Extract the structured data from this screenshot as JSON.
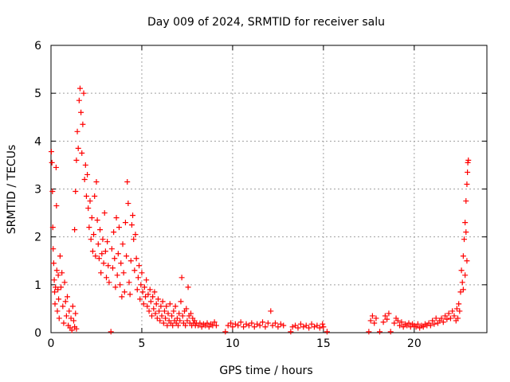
{
  "chart_data": {
    "type": "scatter",
    "title": "Day 009 of 2024, SRMTID for receiver salu",
    "xlabel": "GPS time / hours",
    "ylabel": "SRMTID / TECUs",
    "xlim": [
      0,
      24
    ],
    "ylim": [
      0,
      6
    ],
    "xticks": [
      0,
      5,
      10,
      15,
      20
    ],
    "yticks": [
      0,
      1,
      2,
      3,
      4,
      5,
      6
    ],
    "grid": true,
    "marker": "+",
    "color": "#ff0000",
    "series": [
      {
        "name": "SRMTID",
        "points": [
          [
            0.02,
            3.78
          ],
          [
            0.05,
            3.55
          ],
          [
            0.08,
            2.95
          ],
          [
            0.1,
            2.2
          ],
          [
            0.12,
            1.75
          ],
          [
            0.15,
            1.45
          ],
          [
            0.18,
            1.1
          ],
          [
            0.2,
            0.85
          ],
          [
            0.22,
            0.6
          ],
          [
            0.25,
            0.95
          ],
          [
            0.28,
            3.45
          ],
          [
            0.3,
            2.65
          ],
          [
            0.32,
            1.3
          ],
          [
            0.35,
            0.45
          ],
          [
            0.38,
            0.9
          ],
          [
            0.4,
            1.2
          ],
          [
            0.42,
            0.7
          ],
          [
            0.45,
            0.3
          ],
          [
            0.5,
            1.6
          ],
          [
            0.55,
            0.95
          ],
          [
            0.6,
            1.25
          ],
          [
            0.65,
            0.55
          ],
          [
            0.7,
            0.2
          ],
          [
            0.75,
            1.05
          ],
          [
            0.8,
            0.65
          ],
          [
            0.85,
            0.35
          ],
          [
            0.9,
            0.75
          ],
          [
            0.95,
            0.15
          ],
          [
            1.0,
            0.45
          ],
          [
            1.05,
            0.1
          ],
          [
            1.1,
            0.3
          ],
          [
            1.15,
            0.05
          ],
          [
            1.2,
            0.55
          ],
          [
            1.25,
            0.25
          ],
          [
            1.3,
            0.12
          ],
          [
            1.35,
            0.4
          ],
          [
            1.4,
            0.08
          ],
          [
            1.3,
            2.15
          ],
          [
            1.35,
            2.95
          ],
          [
            1.4,
            3.6
          ],
          [
            1.45,
            4.2
          ],
          [
            1.5,
            3.85
          ],
          [
            1.55,
            4.85
          ],
          [
            1.6,
            5.1
          ],
          [
            1.65,
            4.6
          ],
          [
            1.7,
            3.75
          ],
          [
            1.75,
            4.35
          ],
          [
            1.8,
            5.0
          ],
          [
            1.85,
            3.2
          ],
          [
            1.9,
            3.5
          ],
          [
            1.95,
            2.85
          ],
          [
            2.0,
            3.3
          ],
          [
            2.05,
            2.6
          ],
          [
            2.1,
            2.2
          ],
          [
            2.15,
            2.75
          ],
          [
            2.2,
            1.95
          ],
          [
            2.25,
            2.4
          ],
          [
            2.3,
            1.7
          ],
          [
            2.35,
            2.05
          ],
          [
            2.4,
            2.85
          ],
          [
            2.45,
            1.6
          ],
          [
            2.5,
            3.15
          ],
          [
            2.55,
            2.35
          ],
          [
            2.6,
            1.85
          ],
          [
            2.65,
            1.55
          ],
          [
            2.7,
            2.15
          ],
          [
            2.75,
            1.25
          ],
          [
            2.8,
            1.65
          ],
          [
            2.85,
            1.95
          ],
          [
            2.9,
            1.45
          ],
          [
            2.95,
            2.5
          ],
          [
            3.0,
            1.7
          ],
          [
            3.05,
            1.15
          ],
          [
            3.1,
            1.9
          ],
          [
            3.15,
            1.4
          ],
          [
            3.2,
            1.05
          ],
          [
            3.3,
            0.02
          ],
          [
            3.35,
            1.75
          ],
          [
            3.4,
            1.35
          ],
          [
            3.45,
            2.1
          ],
          [
            3.5,
            1.55
          ],
          [
            3.55,
            0.95
          ],
          [
            3.6,
            2.4
          ],
          [
            3.65,
            1.2
          ],
          [
            3.7,
            1.65
          ],
          [
            3.75,
            2.2
          ],
          [
            3.8,
            1.0
          ],
          [
            3.85,
            1.45
          ],
          [
            3.9,
            0.75
          ],
          [
            3.95,
            1.85
          ],
          [
            4.0,
            1.25
          ],
          [
            4.05,
            0.85
          ],
          [
            4.1,
            2.3
          ],
          [
            4.15,
            1.6
          ],
          [
            4.2,
            3.15
          ],
          [
            4.25,
            2.7
          ],
          [
            4.3,
            1.05
          ],
          [
            4.35,
            0.8
          ],
          [
            4.4,
            1.5
          ],
          [
            4.45,
            2.25
          ],
          [
            4.5,
            2.45
          ],
          [
            4.55,
            1.95
          ],
          [
            4.6,
            1.3
          ],
          [
            4.65,
            2.05
          ],
          [
            4.7,
            1.55
          ],
          [
            4.75,
            0.9
          ],
          [
            4.8,
            1.15
          ],
          [
            4.85,
            1.4
          ],
          [
            4.9,
            0.7
          ],
          [
            4.95,
            1.0
          ],
          [
            5.0,
            1.25
          ],
          [
            5.05,
            0.85
          ],
          [
            5.1,
            0.6
          ],
          [
            5.15,
            0.95
          ],
          [
            5.2,
            0.75
          ],
          [
            5.25,
            1.1
          ],
          [
            5.3,
            0.55
          ],
          [
            5.35,
            0.8
          ],
          [
            5.4,
            0.45
          ],
          [
            5.45,
            0.9
          ],
          [
            5.5,
            0.65
          ],
          [
            5.55,
            0.35
          ],
          [
            5.6,
            0.75
          ],
          [
            5.65,
            0.5
          ],
          [
            5.7,
            0.85
          ],
          [
            5.75,
            0.4
          ],
          [
            5.8,
            0.6
          ],
          [
            5.85,
            0.3
          ],
          [
            5.9,
            0.7
          ],
          [
            5.95,
            0.45
          ],
          [
            6.0,
            0.25
          ],
          [
            6.05,
            0.55
          ],
          [
            6.1,
            0.35
          ],
          [
            6.15,
            0.65
          ],
          [
            6.2,
            0.2
          ],
          [
            6.25,
            0.45
          ],
          [
            6.3,
            0.3
          ],
          [
            6.35,
            0.55
          ],
          [
            6.4,
            0.15
          ],
          [
            6.45,
            0.4
          ],
          [
            6.5,
            0.25
          ],
          [
            6.55,
            0.6
          ],
          [
            6.6,
            0.2
          ],
          [
            6.65,
            0.35
          ],
          [
            6.7,
            0.15
          ],
          [
            6.75,
            0.45
          ],
          [
            6.8,
            0.25
          ],
          [
            6.85,
            0.55
          ],
          [
            6.9,
            0.2
          ],
          [
            6.95,
            0.3
          ],
          [
            7.0,
            0.15
          ],
          [
            7.05,
            0.4
          ],
          [
            7.1,
            0.25
          ],
          [
            7.15,
            0.65
          ],
          [
            7.2,
            1.15
          ],
          [
            7.25,
            0.35
          ],
          [
            7.3,
            0.2
          ],
          [
            7.35,
            0.45
          ],
          [
            7.4,
            0.15
          ],
          [
            7.45,
            0.5
          ],
          [
            7.5,
            0.25
          ],
          [
            7.55,
            0.95
          ],
          [
            7.6,
            0.35
          ],
          [
            7.65,
            0.2
          ],
          [
            7.7,
            0.4
          ],
          [
            7.75,
            0.15
          ],
          [
            7.8,
            0.3
          ],
          [
            7.85,
            0.2
          ],
          [
            7.9,
            0.25
          ],
          [
            7.95,
            0.15
          ],
          [
            8.0,
            0.2
          ],
          [
            8.1,
            0.15
          ],
          [
            8.2,
            0.2
          ],
          [
            8.3,
            0.12
          ],
          [
            8.4,
            0.18
          ],
          [
            8.5,
            0.15
          ],
          [
            8.6,
            0.2
          ],
          [
            8.7,
            0.12
          ],
          [
            8.8,
            0.18
          ],
          [
            8.9,
            0.15
          ],
          [
            9.0,
            0.22
          ],
          [
            9.1,
            0.15
          ],
          [
            9.6,
            0.02
          ],
          [
            9.75,
            0.15
          ],
          [
            9.9,
            0.2
          ],
          [
            10.0,
            0.12
          ],
          [
            10.15,
            0.18
          ],
          [
            10.3,
            0.15
          ],
          [
            10.45,
            0.22
          ],
          [
            10.6,
            0.12
          ],
          [
            10.75,
            0.18
          ],
          [
            10.9,
            0.15
          ],
          [
            11.05,
            0.2
          ],
          [
            11.2,
            0.12
          ],
          [
            11.35,
            0.18
          ],
          [
            11.5,
            0.15
          ],
          [
            11.65,
            0.22
          ],
          [
            11.8,
            0.12
          ],
          [
            11.95,
            0.2
          ],
          [
            12.1,
            0.45
          ],
          [
            12.2,
            0.15
          ],
          [
            12.35,
            0.2
          ],
          [
            12.5,
            0.12
          ],
          [
            12.65,
            0.18
          ],
          [
            12.8,
            0.15
          ],
          [
            13.2,
            0.02
          ],
          [
            13.3,
            0.12
          ],
          [
            13.45,
            0.15
          ],
          [
            13.6,
            0.1
          ],
          [
            13.75,
            0.18
          ],
          [
            13.9,
            0.12
          ],
          [
            14.05,
            0.15
          ],
          [
            14.2,
            0.1
          ],
          [
            14.35,
            0.18
          ],
          [
            14.5,
            0.12
          ],
          [
            14.65,
            0.15
          ],
          [
            14.8,
            0.1
          ],
          [
            14.95,
            0.18
          ],
          [
            15.0,
            0.12
          ],
          [
            15.2,
            0.02
          ],
          [
            17.5,
            0.02
          ],
          [
            17.6,
            0.25
          ],
          [
            17.7,
            0.35
          ],
          [
            17.8,
            0.2
          ],
          [
            17.9,
            0.3
          ],
          [
            18.1,
            0.02
          ],
          [
            18.3,
            0.22
          ],
          [
            18.4,
            0.35
          ],
          [
            18.5,
            0.28
          ],
          [
            18.6,
            0.4
          ],
          [
            18.7,
            0.02
          ],
          [
            18.9,
            0.2
          ],
          [
            19.0,
            0.3
          ],
          [
            19.1,
            0.25
          ],
          [
            19.2,
            0.15
          ],
          [
            19.3,
            0.22
          ],
          [
            19.4,
            0.12
          ],
          [
            19.5,
            0.18
          ],
          [
            19.6,
            0.15
          ],
          [
            19.7,
            0.2
          ],
          [
            19.8,
            0.12
          ],
          [
            19.9,
            0.18
          ],
          [
            20.0,
            0.15
          ],
          [
            20.1,
            0.12
          ],
          [
            20.2,
            0.18
          ],
          [
            20.3,
            0.1
          ],
          [
            20.4,
            0.15
          ],
          [
            20.5,
            0.12
          ],
          [
            20.6,
            0.18
          ],
          [
            20.7,
            0.15
          ],
          [
            20.8,
            0.2
          ],
          [
            20.9,
            0.15
          ],
          [
            21.0,
            0.25
          ],
          [
            21.1,
            0.18
          ],
          [
            21.2,
            0.3
          ],
          [
            21.3,
            0.2
          ],
          [
            21.4,
            0.25
          ],
          [
            21.5,
            0.3
          ],
          [
            21.6,
            0.22
          ],
          [
            21.7,
            0.35
          ],
          [
            21.8,
            0.28
          ],
          [
            21.9,
            0.4
          ],
          [
            22.0,
            0.3
          ],
          [
            22.1,
            0.45
          ],
          [
            22.2,
            0.35
          ],
          [
            22.3,
            0.25
          ],
          [
            22.35,
            0.5
          ],
          [
            22.4,
            0.3
          ],
          [
            22.45,
            0.6
          ],
          [
            22.5,
            0.45
          ],
          [
            22.55,
            0.85
          ],
          [
            22.6,
            1.3
          ],
          [
            22.65,
            1.05
          ],
          [
            22.7,
            1.6
          ],
          [
            22.75,
            1.95
          ],
          [
            22.8,
            2.3
          ],
          [
            22.85,
            2.75
          ],
          [
            22.9,
            3.1
          ],
          [
            22.93,
            3.35
          ],
          [
            22.95,
            3.55
          ],
          [
            22.98,
            3.6
          ],
          [
            22.9,
            1.5
          ],
          [
            22.8,
            1.2
          ],
          [
            22.85,
            2.1
          ],
          [
            22.7,
            0.9
          ]
        ]
      }
    ]
  }
}
